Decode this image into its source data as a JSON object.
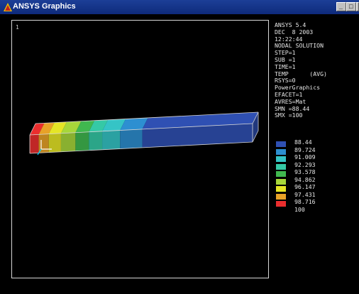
{
  "window": {
    "title": "ANSYS Graphics",
    "min_glyph": "_",
    "max_glyph": "□"
  },
  "viewport": {
    "window_number": "1"
  },
  "info": [
    "ANSYS 5.4",
    "DEC  8 2003",
    "12:22:44",
    "NODAL SOLUTION",
    "STEP=1",
    "SUB =1",
    "TIME=1",
    "TEMP      (AVG)",
    "RSYS=0",
    "PowerGraphics",
    "EFACET=1",
    "AVRES=Mat",
    "SMN =88.44",
    "SMX =100"
  ],
  "legend": {
    "labels": [
      "88.44",
      "89.724",
      "91.009",
      "92.293",
      "93.578",
      "94.862",
      "96.147",
      "97.431",
      "98.716"
    ],
    "colors": [
      "#2f50b3",
      "#2d8fd1",
      "#35c4c6",
      "#35c9a6",
      "#40b84f",
      "#a7d73a",
      "#e5e526",
      "#e8a227",
      "#ea2e2e"
    ],
    "end_label": "100"
  },
  "model": {
    "contour_colors": [
      "#ea2e2e",
      "#e8a227",
      "#e5e526",
      "#a7d73a",
      "#40b84f",
      "#35c9a6",
      "#35c4c6",
      "#2d8fd1",
      "#2f50b3"
    ],
    "edge_color": "#d8d8d8"
  }
}
